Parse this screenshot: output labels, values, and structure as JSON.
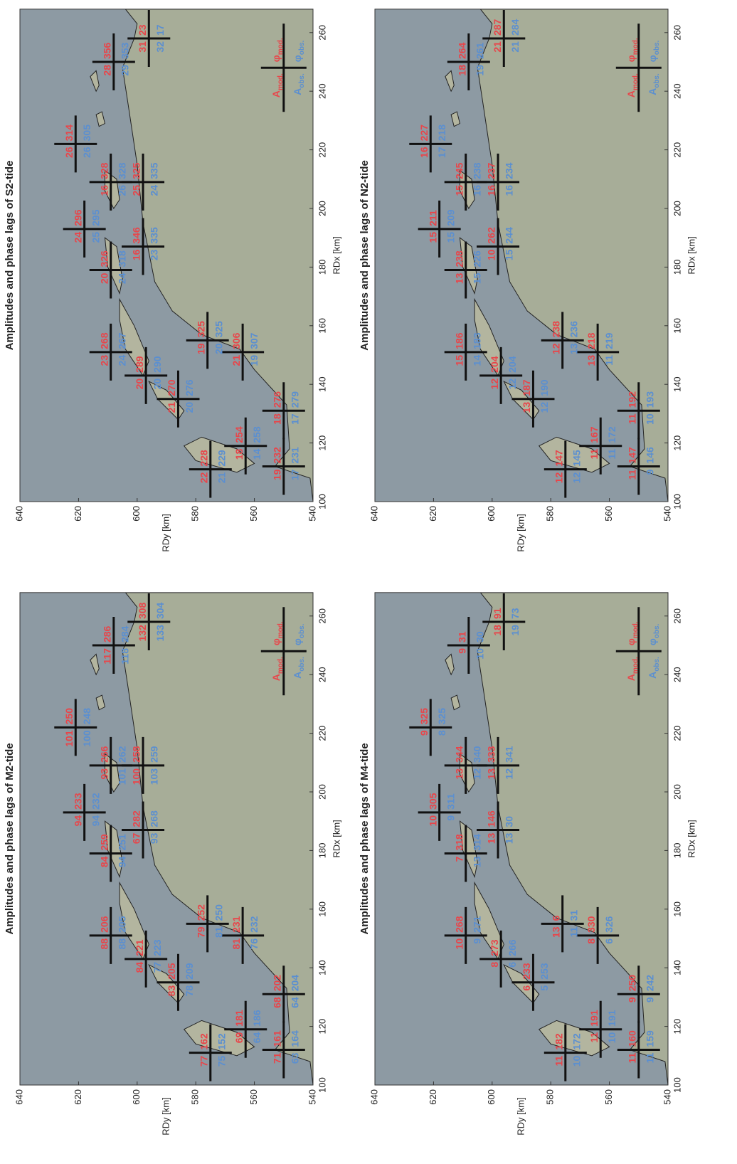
{
  "chart_data": [
    {
      "type": "map",
      "title": "Amplitudes and phase lags of S2-tide",
      "xlabel": "RDx [km]",
      "ylabel": "RDy [km]",
      "xlim": [
        100,
        268
      ],
      "ylim": [
        540,
        640
      ],
      "xticks": [
        100,
        120,
        140,
        160,
        180,
        200,
        220,
        240,
        260
      ],
      "yticks": [
        540,
        560,
        580,
        600,
        620,
        640
      ],
      "x": [
        111,
        112,
        119,
        131,
        135,
        143,
        151,
        151,
        155,
        179,
        187,
        193,
        209,
        209,
        222,
        250,
        258
      ],
      "y": [
        575,
        550,
        563,
        550,
        586,
        597,
        609,
        564,
        576,
        609,
        598,
        618,
        609,
        598,
        621,
        608,
        596
      ],
      "series": [
        {
          "name": "A",
          "sub": "mod.",
          "color": "#e8454a",
          "values": [
            22,
            19,
            18,
            18,
            21,
            20,
            23,
            21,
            19,
            20,
            16,
            24,
            16,
            25,
            26,
            28,
            31
          ]
        },
        {
          "name": "φ",
          "sub": "mod.",
          "color": "#e8454a",
          "values": [
            228,
            232,
            254,
            276,
            270,
            289,
            268,
            306,
            325,
            326,
            346,
            296,
            328,
            325,
            314,
            356,
            23
          ]
        },
        {
          "name": "A",
          "sub": "obs.",
          "color": "#5b8fd0",
          "values": [
            21,
            17,
            14,
            17,
            20,
            20,
            24,
            19,
            20,
            24,
            23,
            25,
            26,
            24,
            26,
            29,
            32
          ]
        },
        {
          "name": "φ",
          "sub": "obs.",
          "color": "#5b8fd0",
          "values": [
            229,
            231,
            258,
            279,
            276,
            290,
            267,
            307,
            325,
            318,
            335,
            295,
            328,
            335,
            305,
            353,
            17
          ]
        }
      ]
    },
    {
      "type": "map",
      "title": "Amplitudes and phase lags of N2-tide",
      "xlabel": "RDx [km]",
      "ylabel": "RDy [km]",
      "xlim": [
        100,
        268
      ],
      "ylim": [
        540,
        640
      ],
      "xticks": [
        100,
        120,
        140,
        160,
        180,
        200,
        220,
        240,
        260
      ],
      "yticks": [
        540,
        560,
        580,
        600,
        620,
        640
      ],
      "x": [
        111,
        112,
        119,
        131,
        135,
        143,
        151,
        151,
        155,
        179,
        187,
        193,
        209,
        209,
        222,
        250,
        258
      ],
      "y": [
        575,
        550,
        563,
        550,
        586,
        597,
        609,
        564,
        576,
        609,
        598,
        618,
        609,
        598,
        621,
        608,
        596
      ],
      "series": [
        {
          "name": "A",
          "sub": "mod.",
          "color": "#e8454a",
          "values": [
            12,
            11,
            11,
            11,
            13,
            12,
            15,
            13,
            12,
            13,
            10,
            15,
            15,
            16,
            16,
            18,
            21
          ]
        },
        {
          "name": "φ",
          "sub": "mod.",
          "color": "#e8454a",
          "values": [
            147,
            147,
            167,
            192,
            187,
            204,
            186,
            218,
            238,
            238,
            262,
            211,
            245,
            237,
            227,
            264,
            287
          ]
        },
        {
          "name": "A",
          "sub": "obs.",
          "color": "#5b8fd0",
          "values": [
            12,
            9,
            11,
            10,
            12,
            12,
            14,
            11,
            13,
            15,
            15,
            15,
            16,
            16,
            17,
            19,
            21
          ]
        },
        {
          "name": "φ",
          "sub": "obs.",
          "color": "#5b8fd0",
          "values": [
            145,
            146,
            172,
            193,
            190,
            204,
            183,
            219,
            236,
            226,
            244,
            209,
            238,
            234,
            218,
            261,
            284
          ]
        }
      ]
    },
    {
      "type": "map",
      "title": "Amplitudes and phase lags of M2-tide",
      "xlabel": "RDx [km]",
      "ylabel": "RDy [km]",
      "xlim": [
        100,
        268
      ],
      "ylim": [
        540,
        640
      ],
      "xticks": [
        100,
        120,
        140,
        160,
        180,
        200,
        220,
        240,
        260
      ],
      "yticks": [
        540,
        560,
        580,
        600,
        620,
        640
      ],
      "x": [
        111,
        112,
        119,
        131,
        135,
        143,
        151,
        151,
        155,
        179,
        187,
        193,
        209,
        209,
        222,
        250,
        258
      ],
      "y": [
        575,
        550,
        563,
        550,
        586,
        597,
        609,
        564,
        576,
        609,
        598,
        618,
        609,
        598,
        621,
        608,
        596
      ],
      "series": [
        {
          "name": "A",
          "sub": "mod.",
          "color": "#e8454a",
          "values": [
            77,
            71,
            69,
            68,
            83,
            84,
            88,
            81,
            79,
            84,
            67,
            94,
            93,
            100,
            101,
            117,
            132
          ]
        },
        {
          "name": "φ",
          "sub": "mod.",
          "color": "#e8454a",
          "values": [
            162,
            161,
            181,
            202,
            205,
            221,
            206,
            231,
            252,
            259,
            282,
            233,
            266,
            258,
            250,
            286,
            308
          ]
        },
        {
          "name": "A",
          "sub": "obs.",
          "color": "#5b8fd0",
          "values": [
            75,
            63,
            64,
            64,
            78,
            77,
            88,
            76,
            81,
            94,
            93,
            94,
            101,
            103,
            100,
            118,
            133
          ]
        },
        {
          "name": "φ",
          "sub": "obs.",
          "color": "#5b8fd0",
          "values": [
            152,
            164,
            186,
            204,
            209,
            223,
            205,
            232,
            250,
            251,
            268,
            232,
            262,
            259,
            248,
            284,
            304
          ]
        }
      ]
    },
    {
      "type": "map",
      "title": "Amplitudes and phase lags of M4-tide",
      "xlabel": "RDx [km]",
      "ylabel": "RDy [km]",
      "xlim": [
        100,
        268
      ],
      "ylim": [
        540,
        640
      ],
      "xticks": [
        100,
        120,
        140,
        160,
        180,
        200,
        220,
        240,
        260
      ],
      "yticks": [
        540,
        560,
        580,
        600,
        620,
        640
      ],
      "x": [
        111,
        112,
        119,
        131,
        135,
        143,
        151,
        151,
        155,
        179,
        187,
        193,
        209,
        209,
        222,
        250,
        258
      ],
      "y": [
        575,
        550,
        563,
        550,
        586,
        597,
        609,
        564,
        576,
        609,
        598,
        618,
        609,
        598,
        621,
        608,
        596
      ],
      "series": [
        {
          "name": "A",
          "sub": "mod.",
          "color": "#e8454a",
          "values": [
            11,
            11,
            11,
            9,
            6,
            8,
            10,
            8,
            13,
            7,
            13,
            10,
            13,
            13,
            9,
            9,
            18
          ]
        },
        {
          "name": "φ",
          "sub": "mod.",
          "color": "#e8454a",
          "values": [
            182,
            160,
            191,
            250,
            233,
            273,
            268,
            330,
            6,
            318,
            146,
            305,
            344,
            333,
            325,
            31,
            91
          ]
        },
        {
          "name": "A",
          "sub": "obs.",
          "color": "#5b8fd0",
          "values": [
            10,
            11,
            10,
            9,
            5,
            6,
            9,
            6,
            11,
            13,
            13,
            9,
            12,
            12,
            8,
            10,
            19
          ]
        },
        {
          "name": "φ",
          "sub": "obs.",
          "color": "#5b8fd0",
          "values": [
            172,
            159,
            191,
            242,
            253,
            266,
            271,
            326,
            31,
            314,
            30,
            311,
            340,
            341,
            325,
            30,
            73
          ]
        }
      ]
    }
  ]
}
